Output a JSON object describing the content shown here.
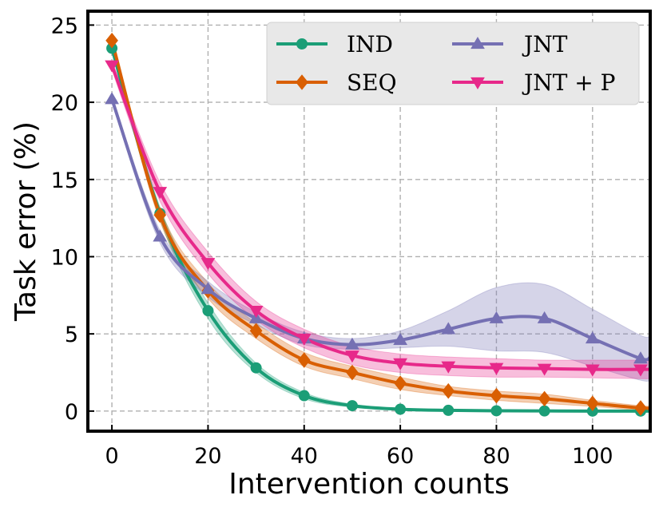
{
  "chart_data": {
    "type": "line",
    "title": "",
    "xlabel": "Intervention counts",
    "ylabel": "Task error (%)",
    "xlim": [
      -5,
      112
    ],
    "ylim": [
      -1.3,
      25.9
    ],
    "xticks": [
      0,
      20,
      40,
      60,
      80,
      100
    ],
    "yticks": [
      0,
      5,
      10,
      15,
      20,
      25
    ],
    "grid": true,
    "legend_position": "top-right",
    "series": [
      {
        "name": "IND",
        "color": "#1b9e77",
        "marker": "circle",
        "x": [
          0,
          10,
          20,
          30,
          40,
          50,
          60,
          70,
          80,
          90,
          100,
          110
        ],
        "values": [
          23.5,
          12.8,
          6.5,
          2.8,
          1.0,
          0.35,
          0.12,
          0.05,
          0.02,
          0.01,
          0.0,
          0.0
        ],
        "lower": [
          23.3,
          12.4,
          6.0,
          2.5,
          0.8,
          0.25,
          0.08,
          0.03,
          0.0,
          0.0,
          0.0,
          0.0
        ],
        "upper": [
          23.7,
          13.2,
          7.0,
          3.1,
          1.2,
          0.45,
          0.16,
          0.07,
          0.04,
          0.02,
          0.01,
          0.01
        ]
      },
      {
        "name": "SEQ",
        "color": "#d95f02",
        "marker": "diamond",
        "x": [
          0,
          10,
          20,
          30,
          40,
          50,
          60,
          70,
          80,
          90,
          100,
          110
        ],
        "values": [
          24.0,
          12.7,
          7.8,
          5.2,
          3.3,
          2.5,
          1.8,
          1.3,
          1.0,
          0.8,
          0.5,
          0.2
        ],
        "lower": [
          23.8,
          12.3,
          7.3,
          4.7,
          2.9,
          2.1,
          1.4,
          1.0,
          0.7,
          0.5,
          0.3,
          0.05
        ],
        "upper": [
          24.2,
          13.1,
          8.3,
          5.7,
          3.8,
          2.9,
          2.2,
          1.6,
          1.3,
          1.1,
          0.7,
          0.35
        ]
      },
      {
        "name": "JNT",
        "color": "#7570b3",
        "marker": "triangle-up",
        "x": [
          0,
          10,
          20,
          30,
          40,
          50,
          60,
          70,
          80,
          90,
          100,
          110
        ],
        "values": [
          20.2,
          11.3,
          7.9,
          6.0,
          4.7,
          4.3,
          4.6,
          5.3,
          6.0,
          6.0,
          4.7,
          3.4
        ],
        "lower": [
          20.0,
          10.9,
          7.4,
          5.6,
          4.3,
          4.0,
          4.1,
          4.2,
          3.9,
          3.8,
          2.9,
          2.0
        ],
        "upper": [
          20.4,
          11.7,
          8.4,
          6.4,
          5.1,
          4.7,
          5.2,
          6.5,
          8.0,
          8.2,
          6.6,
          4.9
        ]
      },
      {
        "name": "JNT + P",
        "color": "#e7298a",
        "marker": "triangle-down",
        "x": [
          0,
          10,
          20,
          30,
          40,
          50,
          60,
          70,
          80,
          90,
          100,
          110
        ],
        "values": [
          22.4,
          14.2,
          9.6,
          6.5,
          4.7,
          3.6,
          3.1,
          2.9,
          2.8,
          2.75,
          2.7,
          2.7
        ],
        "lower": [
          22.1,
          13.6,
          8.9,
          5.9,
          4.1,
          3.0,
          2.5,
          2.3,
          2.2,
          2.2,
          2.15,
          2.1
        ],
        "upper": [
          22.7,
          14.8,
          10.3,
          7.1,
          5.3,
          4.2,
          3.7,
          3.5,
          3.4,
          3.3,
          3.3,
          3.3
        ]
      }
    ]
  }
}
